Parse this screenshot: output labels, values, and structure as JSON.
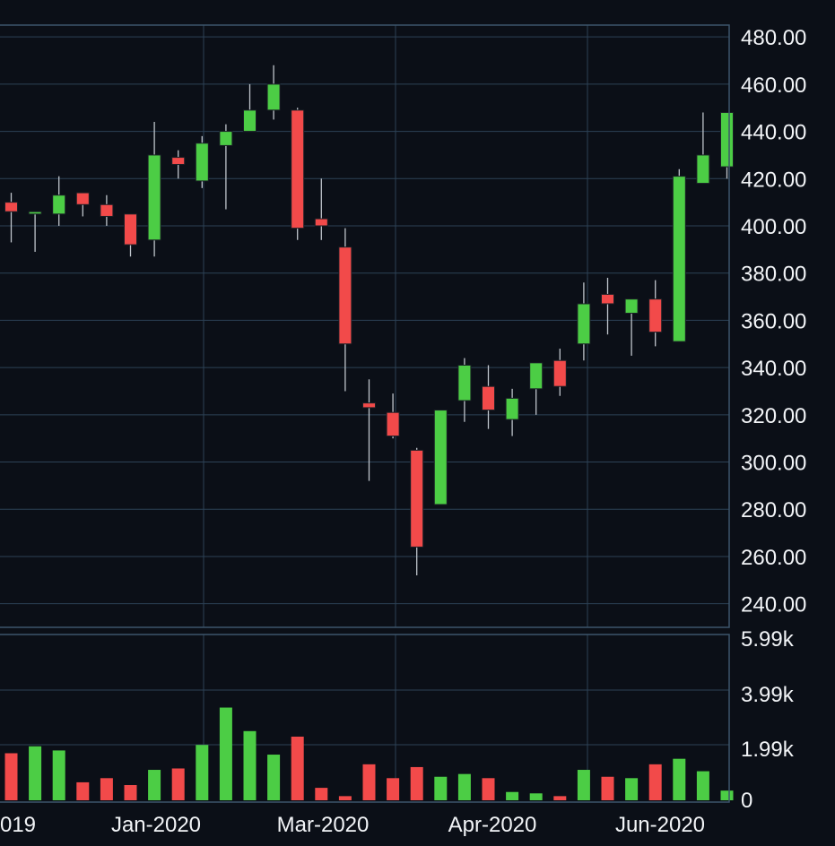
{
  "chart_data": {
    "type": "candlestick",
    "price_axis": {
      "range": [
        230,
        485
      ],
      "ticks": [
        "480.00",
        "460.00",
        "440.00",
        "420.00",
        "400.00",
        "380.00",
        "360.00",
        "340.00",
        "320.00",
        "300.00",
        "280.00",
        "260.00",
        "240.00"
      ]
    },
    "volume_axis": {
      "ticks": [
        "5.99k",
        "3.99k",
        "1.99k",
        "0"
      ],
      "max_k": 5.99
    },
    "x_tick_labels": [
      "019",
      "Jan-2020",
      "Mar-2020",
      "Apr-2020",
      "Jun-2020"
    ],
    "colors": {
      "up": "#4ccd45",
      "down": "#f24a4a",
      "background": "#0b0f17",
      "grid": "#2d4256",
      "text": "#f2f4f7",
      "wick": "#bfc5cc"
    },
    "candles": [
      {
        "open": 410,
        "high": 414,
        "low": 393,
        "close": 406
      },
      {
        "open": 405,
        "high": 406,
        "low": 389,
        "close": 406
      },
      {
        "open": 405,
        "high": 421,
        "low": 400,
        "close": 413
      },
      {
        "open": 414,
        "high": 414,
        "low": 404,
        "close": 409
      },
      {
        "open": 409,
        "high": 413,
        "low": 400,
        "close": 404
      },
      {
        "open": 405,
        "high": 405,
        "low": 387,
        "close": 392
      },
      {
        "open": 394,
        "high": 444,
        "low": 387,
        "close": 430
      },
      {
        "open": 429,
        "high": 432,
        "low": 420,
        "close": 426
      },
      {
        "open": 419,
        "high": 438,
        "low": 416,
        "close": 435
      },
      {
        "open": 434,
        "high": 443,
        "low": 407,
        "close": 440
      },
      {
        "open": 440,
        "high": 460,
        "low": 440,
        "close": 449
      },
      {
        "open": 449,
        "high": 468,
        "low": 445,
        "close": 460
      },
      {
        "open": 449,
        "high": 450,
        "low": 394,
        "close": 399
      },
      {
        "open": 403,
        "high": 420,
        "low": 394,
        "close": 400
      },
      {
        "open": 391,
        "high": 399,
        "low": 330,
        "close": 350
      },
      {
        "open": 325,
        "high": 335,
        "low": 292,
        "close": 323
      },
      {
        "open": 321,
        "high": 329,
        "low": 310,
        "close": 311
      },
      {
        "open": 305,
        "high": 306,
        "low": 252,
        "close": 264
      },
      {
        "open": 282,
        "high": 322,
        "low": 282,
        "close": 322
      },
      {
        "open": 326,
        "high": 344,
        "low": 317,
        "close": 341
      },
      {
        "open": 332,
        "high": 341,
        "low": 314,
        "close": 322
      },
      {
        "open": 318,
        "high": 331,
        "low": 311,
        "close": 327
      },
      {
        "open": 331,
        "high": 342,
        "low": 320,
        "close": 342
      },
      {
        "open": 343,
        "high": 348,
        "low": 328,
        "close": 332
      },
      {
        "open": 350,
        "high": 376,
        "low": 343,
        "close": 367
      },
      {
        "open": 371,
        "high": 378,
        "low": 354,
        "close": 367
      },
      {
        "open": 363,
        "high": 369,
        "low": 345,
        "close": 369
      },
      {
        "open": 369,
        "high": 377,
        "low": 349,
        "close": 355
      },
      {
        "open": 351,
        "high": 424,
        "low": 351,
        "close": 421
      },
      {
        "open": 418,
        "high": 448,
        "low": 418,
        "close": 430
      },
      {
        "open": 425,
        "high": 448,
        "low": 420,
        "close": 448
      }
    ],
    "volume_k": [
      1.7,
      1.95,
      1.8,
      0.65,
      0.8,
      0.55,
      1.1,
      1.15,
      2.0,
      3.35,
      2.5,
      1.65,
      2.3,
      0.45,
      0.15,
      1.3,
      0.8,
      1.2,
      0.85,
      0.95,
      0.8,
      0.3,
      0.25,
      0.15,
      1.1,
      0.85,
      0.8,
      1.3,
      1.5,
      1.05,
      0.35
    ]
  }
}
